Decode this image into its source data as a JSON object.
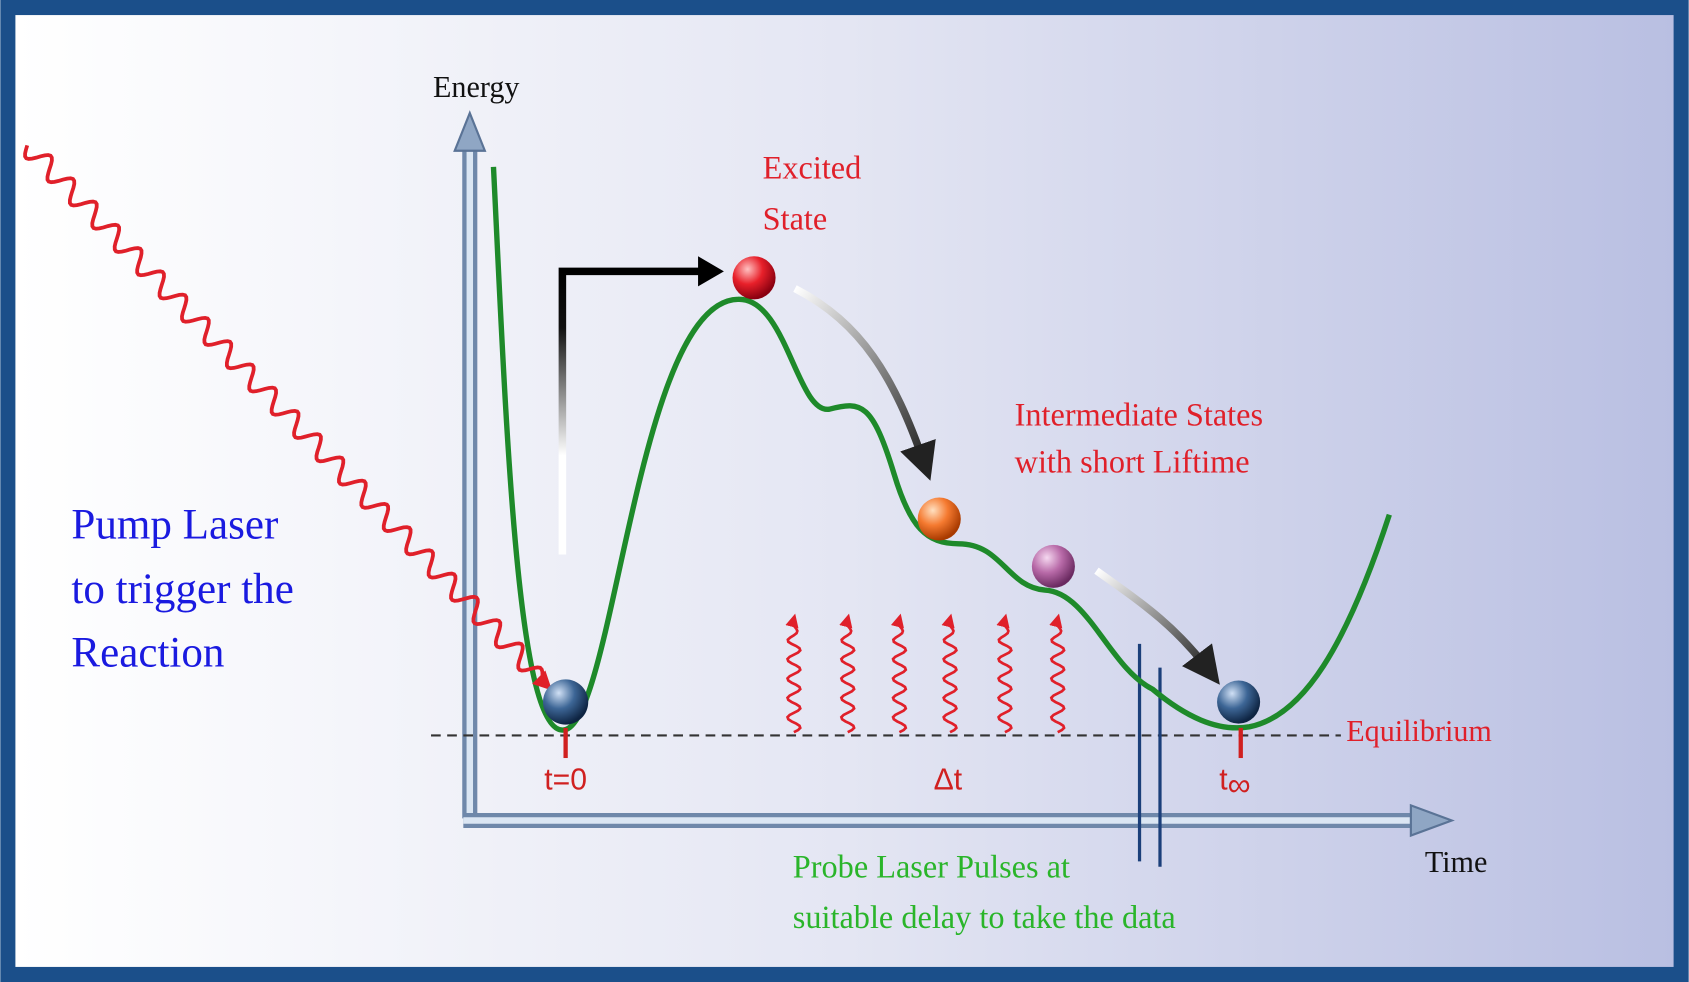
{
  "axes": {
    "y_label": "Energy",
    "x_label": "Time"
  },
  "labels": {
    "excited_state": [
      "Excited",
      "State"
    ],
    "intermediate_states": [
      "Intermediate States",
      "with short Liftime"
    ],
    "pump_laser": [
      "Pump Laser",
      "to trigger the",
      "Reaction"
    ],
    "equilibrium": "Equilibrium",
    "probe_laser": [
      "Probe Laser Pulses at",
      "suitable delay to take the data"
    ]
  },
  "markers": {
    "start": "t=0",
    "delay": "Δt",
    "end": [
      "t",
      "∞"
    ]
  }
}
